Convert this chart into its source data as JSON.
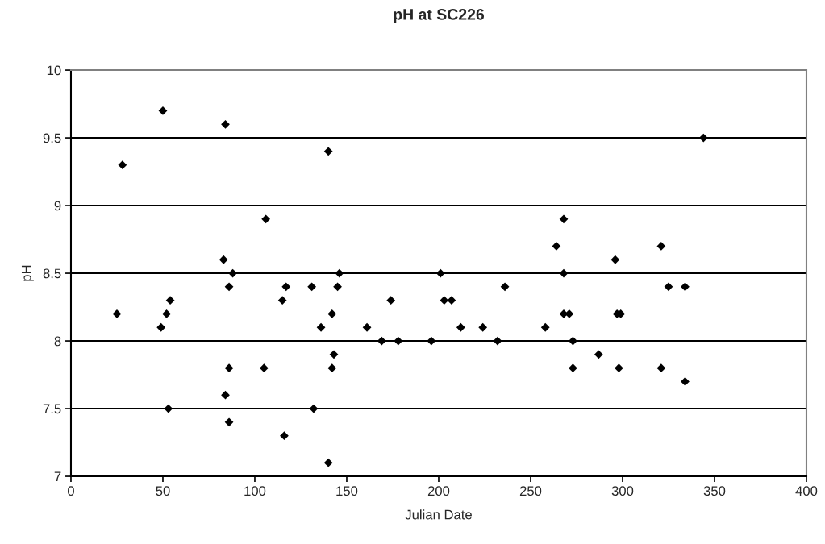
{
  "chart_data": {
    "type": "scatter",
    "title": "pH at SC226",
    "xlabel": "Julian Date",
    "ylabel": "pH",
    "xlim": [
      0,
      400
    ],
    "xticks": [
      0,
      50,
      100,
      150,
      200,
      250,
      300,
      350,
      400
    ],
    "ylim": [
      7,
      10
    ],
    "yticks": [
      7,
      7.5,
      8,
      8.5,
      9,
      9.5,
      10
    ],
    "grid": "y",
    "marker": "diamond",
    "legend": false,
    "series": [
      {
        "color": "#000000",
        "x": [
          25,
          28,
          50,
          49,
          52,
          54,
          53,
          83,
          84,
          86,
          88,
          84,
          86,
          86,
          106,
          105,
          115,
          117,
          116,
          131,
          132,
          136,
          140,
          140,
          142,
          142,
          143,
          145,
          146,
          161,
          169,
          174,
          178,
          196,
          201,
          203,
          207,
          212,
          224,
          232,
          236,
          258,
          264,
          268,
          268,
          268,
          271,
          273,
          273,
          287,
          296,
          297,
          298,
          299,
          321,
          321,
          325,
          334,
          334,
          344
        ],
        "values": [
          8.2,
          9.3,
          9.7,
          8.1,
          8.2,
          8.3,
          7.5,
          8.6,
          9.6,
          8.4,
          8.5,
          7.6,
          7.8,
          7.4,
          8.9,
          7.8,
          8.3,
          8.4,
          7.3,
          8.4,
          7.5,
          8.1,
          9.4,
          7.1,
          7.8,
          8.2,
          7.9,
          8.4,
          8.5,
          8.1,
          8.0,
          8.3,
          8.0,
          8.0,
          8.5,
          8.3,
          8.3,
          8.1,
          8.1,
          8.0,
          8.4,
          8.1,
          8.7,
          8.9,
          8.5,
          8.2,
          8.2,
          8.0,
          7.8,
          7.9,
          8.6,
          8.2,
          7.8,
          8.2,
          8.7,
          7.8,
          8.4,
          8.4,
          7.7,
          9.5
        ]
      }
    ]
  }
}
